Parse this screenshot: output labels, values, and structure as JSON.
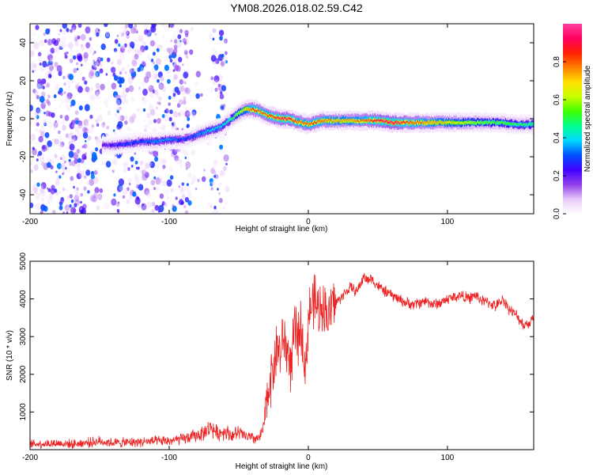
{
  "title": "YM08.2026.018.02.59.C42",
  "chart_data": [
    {
      "type": "heatmap",
      "xlabel": "Height of straight line (km)",
      "ylabel": "Frequency (Hz)",
      "xlim": [
        -200,
        162
      ],
      "ylim": [
        -50,
        50
      ],
      "xticks": [
        -200,
        -100,
        0,
        100
      ],
      "yticks": [
        -40,
        -20,
        0,
        20,
        40
      ],
      "colorbar": {
        "label": "Normalized spectral amplitude",
        "range": [
          0,
          1
        ],
        "ticks": [
          0.0,
          0.2,
          0.4,
          0.6,
          0.8
        ],
        "colors": [
          "#ffffff",
          "#e8c8f8",
          "#9040e8",
          "#4000ff",
          "#0050ff",
          "#00d8ff",
          "#00ff90",
          "#40ff00",
          "#c8ff00",
          "#ffe000",
          "#ff8000",
          "#ff2000",
          "#ff0060",
          "#ff40a0"
        ]
      },
      "ridge": {
        "name": "frequency ridge",
        "x": [
          -148,
          -140,
          -130,
          -120,
          -110,
          -100,
          -92,
          -85,
          -78,
          -70,
          -62,
          -55,
          -50,
          -45,
          -40,
          -35,
          -30,
          -25,
          -20,
          -15,
          -10,
          -5,
          0,
          5,
          10,
          20,
          30,
          40,
          50,
          60,
          70,
          80,
          90,
          100,
          110,
          120,
          130,
          140,
          150,
          162
        ],
        "y": [
          -14,
          -14,
          -13,
          -12,
          -12,
          -11,
          -11,
          -10,
          -8,
          -6,
          -4,
          0,
          3,
          5,
          5,
          4,
          2,
          1,
          0,
          0,
          -1,
          -2,
          -3,
          -2,
          -1,
          -1,
          -1,
          -1,
          -1,
          -2,
          -2,
          -2,
          -2,
          -2,
          -2,
          -2,
          -2,
          -2,
          -3,
          -3
        ],
        "amplitude": [
          0.2,
          0.25,
          0.3,
          0.3,
          0.35,
          0.35,
          0.3,
          0.3,
          0.35,
          0.4,
          0.4,
          0.5,
          0.6,
          0.7,
          0.85,
          0.8,
          0.8,
          0.85,
          0.9,
          0.9,
          0.85,
          0.8,
          0.8,
          0.85,
          0.8,
          0.75,
          0.75,
          0.8,
          0.9,
          0.95,
          0.85,
          0.8,
          0.75,
          0.7,
          0.65,
          0.6,
          0.55,
          0.55,
          0.5,
          0.5
        ]
      },
      "noise_region_x": [
        -200,
        -58
      ]
    },
    {
      "type": "line",
      "xlabel": "Height of straight line (km)",
      "ylabel": "SNR (10 * v/v)",
      "xlim": [
        -200,
        162
      ],
      "ylim": [
        0,
        5000
      ],
      "xticks": [
        -200,
        -100,
        0,
        100
      ],
      "yticks": [
        1000,
        2000,
        3000,
        4000,
        5000
      ],
      "series": [
        {
          "color": "#ee2222",
          "x": [
            -200,
            -190,
            -180,
            -170,
            -160,
            -150,
            -140,
            -130,
            -120,
            -110,
            -100,
            -90,
            -80,
            -75,
            -70,
            -65,
            -60,
            -55,
            -50,
            -45,
            -40,
            -35,
            -32,
            -30,
            -28,
            -25,
            -22,
            -20,
            -18,
            -15,
            -12,
            -10,
            -8,
            -5,
            -2,
            0,
            2,
            5,
            8,
            10,
            12,
            15,
            18,
            20,
            25,
            30,
            35,
            40,
            42,
            45,
            50,
            55,
            60,
            65,
            70,
            75,
            80,
            85,
            90,
            95,
            100,
            105,
            110,
            115,
            120,
            125,
            130,
            135,
            140,
            145,
            150,
            155,
            160,
            162
          ],
          "y": [
            150,
            160,
            170,
            150,
            180,
            220,
            180,
            190,
            210,
            220,
            230,
            280,
            380,
            450,
            600,
            420,
            500,
            380,
            450,
            350,
            300,
            300,
            600,
            1300,
            1800,
            2200,
            2800,
            2500,
            3000,
            2600,
            2200,
            3200,
            2900,
            3300,
            2000,
            3500,
            3800,
            3900,
            3600,
            4000,
            3700,
            3500,
            4000,
            3900,
            4100,
            4300,
            4200,
            4600,
            4500,
            4550,
            4350,
            4200,
            4100,
            4000,
            3900,
            3850,
            3900,
            3950,
            3850,
            3900,
            4000,
            4050,
            4100,
            4000,
            4100,
            3950,
            3900,
            3800,
            4000,
            3700,
            3550,
            3300,
            3400,
            3600
          ]
        }
      ]
    }
  ]
}
